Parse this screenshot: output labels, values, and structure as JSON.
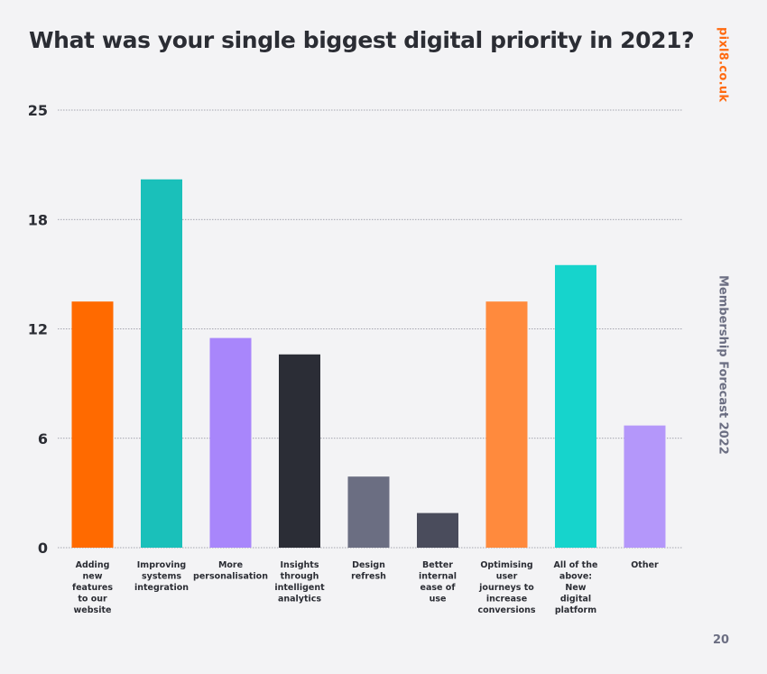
{
  "brand": "pixl8.co.uk",
  "side_label": "Membership Forecast 2022",
  "page_number": "20",
  "colors": {
    "background": "#f3f3f5",
    "text": "#2b2d34",
    "brand": "#ff6a10",
    "muted": "#6b6e82"
  },
  "chart_data": {
    "type": "bar",
    "title": "What was your single biggest digital priority in 2021?",
    "xlabel": "",
    "ylabel": "",
    "ylim": [
      0,
      24
    ],
    "yticks": [
      0,
      6,
      12,
      18,
      25
    ],
    "grid": true,
    "categories": [
      [
        "Adding",
        "new",
        "features",
        "to our",
        "website"
      ],
      [
        "Improving",
        "systems",
        "integration"
      ],
      [
        "More",
        "personalisation"
      ],
      [
        "Insights",
        "through",
        "intelligent",
        "analytics"
      ],
      [
        "Design",
        "refresh"
      ],
      [
        "Better",
        "internal",
        "ease of",
        "use"
      ],
      [
        "Optimising",
        "user",
        "journeys to",
        "increase",
        "conversions"
      ],
      [
        "All of the",
        "above:",
        "New",
        "digital",
        "platform"
      ],
      [
        "Other"
      ]
    ],
    "values": [
      13.5,
      20.2,
      11.5,
      10.6,
      3.9,
      1.9,
      13.5,
      15.5,
      6.7
    ],
    "bar_colors": [
      "#ff6a00",
      "#1ac0ba",
      "#a886fb",
      "#2b2d36",
      "#6b6e82",
      "#4a4c5c",
      "#ff8a3d",
      "#16d4cc",
      "#b497fa"
    ]
  }
}
